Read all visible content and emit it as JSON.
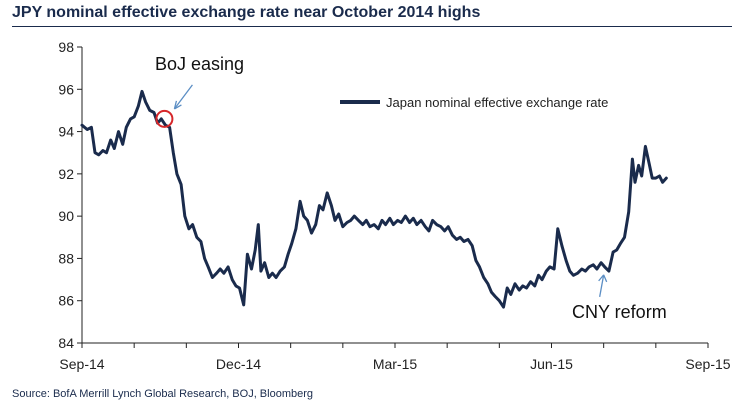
{
  "chart_data": {
    "type": "line",
    "title": "JPY nominal effective exchange rate near October 2014 highs",
    "xlabel": "",
    "ylabel": "",
    "ylim": [
      84,
      98
    ],
    "yticks": [
      84,
      86,
      88,
      90,
      92,
      94,
      96,
      98
    ],
    "x_ticks": [
      "Sep-14",
      "Dec-14",
      "Mar-15",
      "Jun-15",
      "Sep-15"
    ],
    "x_tick_positions": [
      0,
      3,
      6,
      9,
      12
    ],
    "series": [
      {
        "name": "Japan nominal effective exchange rate",
        "color": "#1a2b4c",
        "points": [
          [
            0.0,
            94.3
          ],
          [
            0.1,
            94.1
          ],
          [
            0.18,
            94.2
          ],
          [
            0.25,
            93.0
          ],
          [
            0.32,
            92.9
          ],
          [
            0.4,
            93.1
          ],
          [
            0.47,
            93.0
          ],
          [
            0.55,
            93.6
          ],
          [
            0.62,
            93.2
          ],
          [
            0.7,
            94.0
          ],
          [
            0.78,
            93.4
          ],
          [
            0.85,
            94.2
          ],
          [
            0.93,
            94.6
          ],
          [
            1.0,
            94.7
          ],
          [
            1.08,
            95.2
          ],
          [
            1.15,
            95.9
          ],
          [
            1.22,
            95.4
          ],
          [
            1.3,
            95.0
          ],
          [
            1.38,
            94.9
          ],
          [
            1.45,
            94.4
          ],
          [
            1.52,
            94.6
          ],
          [
            1.6,
            94.3
          ],
          [
            1.68,
            94.2
          ],
          [
            1.75,
            93.0
          ],
          [
            1.82,
            92.0
          ],
          [
            1.9,
            91.5
          ],
          [
            1.97,
            90.0
          ],
          [
            2.05,
            89.4
          ],
          [
            2.12,
            89.6
          ],
          [
            2.2,
            89.0
          ],
          [
            2.28,
            88.8
          ],
          [
            2.35,
            88.0
          ],
          [
            2.42,
            87.6
          ],
          [
            2.5,
            87.1
          ],
          [
            2.58,
            87.3
          ],
          [
            2.65,
            87.5
          ],
          [
            2.72,
            87.3
          ],
          [
            2.8,
            87.6
          ],
          [
            2.88,
            87.0
          ],
          [
            2.95,
            86.7
          ],
          [
            3.02,
            86.6
          ],
          [
            3.1,
            85.8
          ],
          [
            3.17,
            88.2
          ],
          [
            3.25,
            87.5
          ],
          [
            3.32,
            88.4
          ],
          [
            3.38,
            89.6
          ],
          [
            3.43,
            87.4
          ],
          [
            3.5,
            87.8
          ],
          [
            3.58,
            87.1
          ],
          [
            3.65,
            87.3
          ],
          [
            3.72,
            87.1
          ],
          [
            3.8,
            87.4
          ],
          [
            3.88,
            87.6
          ],
          [
            3.95,
            88.2
          ],
          [
            4.02,
            88.7
          ],
          [
            4.1,
            89.4
          ],
          [
            4.18,
            90.7
          ],
          [
            4.25,
            90.0
          ],
          [
            4.32,
            89.8
          ],
          [
            4.4,
            89.2
          ],
          [
            4.48,
            89.6
          ],
          [
            4.55,
            90.5
          ],
          [
            4.62,
            90.3
          ],
          [
            4.7,
            91.1
          ],
          [
            4.78,
            90.5
          ],
          [
            4.85,
            89.8
          ],
          [
            4.92,
            90.1
          ],
          [
            5.0,
            89.5
          ],
          [
            5.08,
            89.7
          ],
          [
            5.15,
            89.8
          ],
          [
            5.22,
            90.0
          ],
          [
            5.3,
            89.8
          ],
          [
            5.38,
            89.6
          ],
          [
            5.45,
            89.8
          ],
          [
            5.52,
            89.5
          ],
          [
            5.6,
            89.6
          ],
          [
            5.68,
            89.4
          ],
          [
            5.75,
            89.8
          ],
          [
            5.82,
            89.6
          ],
          [
            5.9,
            89.9
          ],
          [
            5.97,
            89.6
          ],
          [
            6.05,
            89.8
          ],
          [
            6.12,
            89.7
          ],
          [
            6.2,
            90.0
          ],
          [
            6.28,
            89.7
          ],
          [
            6.35,
            89.9
          ],
          [
            6.42,
            89.6
          ],
          [
            6.5,
            89.8
          ],
          [
            6.58,
            89.5
          ],
          [
            6.65,
            89.3
          ],
          [
            6.72,
            89.8
          ],
          [
            6.8,
            89.6
          ],
          [
            6.88,
            89.5
          ],
          [
            6.95,
            89.3
          ],
          [
            7.02,
            89.5
          ],
          [
            7.1,
            89.1
          ],
          [
            7.18,
            88.9
          ],
          [
            7.25,
            89.0
          ],
          [
            7.32,
            88.8
          ],
          [
            7.4,
            88.9
          ],
          [
            7.48,
            88.6
          ],
          [
            7.55,
            87.9
          ],
          [
            7.62,
            87.6
          ],
          [
            7.7,
            87.1
          ],
          [
            7.78,
            86.8
          ],
          [
            7.85,
            86.4
          ],
          [
            7.92,
            86.2
          ],
          [
            8.0,
            86.0
          ],
          [
            8.08,
            85.7
          ],
          [
            8.15,
            86.6
          ],
          [
            8.22,
            86.3
          ],
          [
            8.3,
            86.8
          ],
          [
            8.38,
            86.5
          ],
          [
            8.45,
            86.7
          ],
          [
            8.52,
            86.6
          ],
          [
            8.6,
            86.9
          ],
          [
            8.68,
            86.7
          ],
          [
            8.75,
            87.2
          ],
          [
            8.82,
            87.0
          ],
          [
            8.9,
            87.4
          ],
          [
            8.97,
            87.6
          ],
          [
            9.05,
            87.5
          ],
          [
            9.12,
            89.4
          ],
          [
            9.2,
            88.6
          ],
          [
            9.28,
            87.9
          ],
          [
            9.35,
            87.4
          ],
          [
            9.42,
            87.2
          ],
          [
            9.5,
            87.3
          ],
          [
            9.58,
            87.5
          ],
          [
            9.65,
            87.4
          ],
          [
            9.72,
            87.6
          ],
          [
            9.8,
            87.7
          ],
          [
            9.87,
            87.5
          ],
          [
            9.95,
            87.8
          ],
          [
            10.02,
            87.6
          ],
          [
            10.1,
            87.4
          ],
          [
            10.18,
            88.3
          ],
          [
            10.25,
            88.4
          ],
          [
            10.32,
            88.7
          ],
          [
            10.4,
            89.0
          ],
          [
            10.48,
            90.2
          ],
          [
            10.55,
            92.7
          ],
          [
            10.6,
            91.6
          ],
          [
            10.67,
            92.4
          ],
          [
            10.73,
            91.9
          ],
          [
            10.8,
            93.3
          ],
          [
            10.87,
            92.5
          ],
          [
            10.93,
            91.8
          ],
          [
            11.0,
            91.8
          ],
          [
            11.07,
            91.9
          ],
          [
            11.13,
            91.6
          ],
          [
            11.2,
            91.8
          ]
        ]
      }
    ],
    "legend": {
      "label": "Japan nominal effective exchange rate",
      "position": "top-right"
    },
    "annotations": [
      {
        "text": "BoJ easing",
        "x": 1.58,
        "y": 94.6,
        "marker": "circle"
      },
      {
        "text": "CNY reform",
        "x": 10.0,
        "y": 87.6,
        "marker": "arrow"
      }
    ],
    "source": "Source: BofA Merrill Lynch Global Research, BOJ, Bloomberg"
  },
  "colors": {
    "line": "#1a2b4c",
    "accent": "#d6272a",
    "axis": "#222222",
    "annot_arrow": "#5b8ec4"
  }
}
